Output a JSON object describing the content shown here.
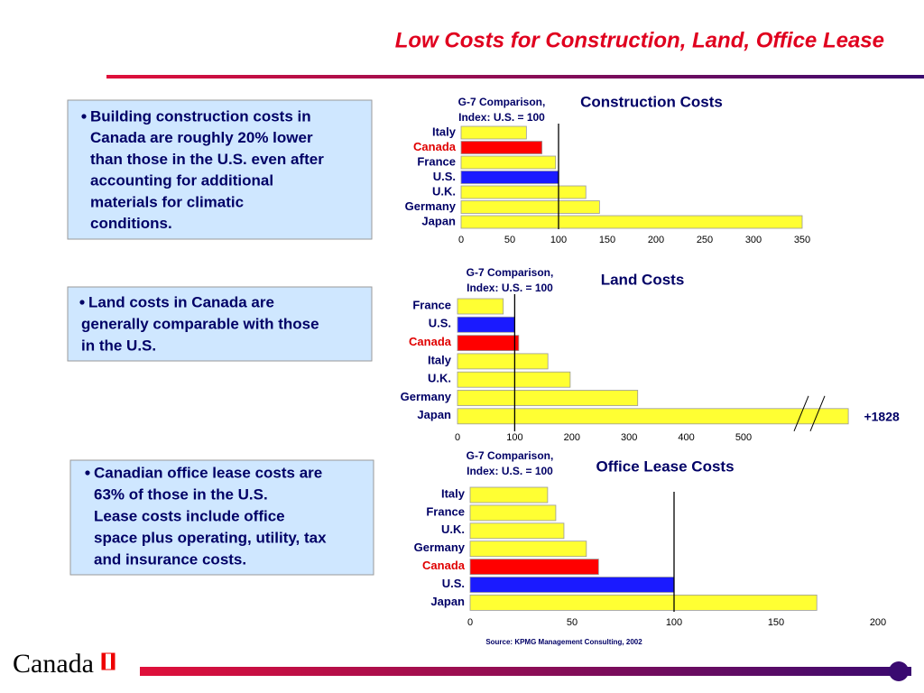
{
  "title": "Low Costs for Construction, Land, Office Lease",
  "notes": [
    {
      "lines": [
        "Building construction costs in",
        "Canada are roughly 20% lower",
        "than those in the U.S. even after",
        "accounting for additional",
        "materials for climatic",
        "conditions."
      ]
    },
    {
      "lines": [
        "Land costs in Canada are",
        "generally comparable with those",
        "in the U.S."
      ]
    },
    {
      "lines": [
        "Canadian office lease costs are",
        "63% of those in the U.S.",
        "Lease costs include office",
        "space plus operating, utility, tax",
        "and insurance costs."
      ]
    }
  ],
  "source": "Source:  KPMG Management Consulting, 2002",
  "logo": "Canada",
  "chart_data": [
    {
      "type": "barh",
      "title": "Construction Costs",
      "subtitle": [
        "G-7 Comparison,",
        "Index: U.S. = 100"
      ],
      "categories": [
        "Italy",
        "Canada",
        "France",
        "U.S.",
        "U.K.",
        "Germany",
        "Japan"
      ],
      "values": [
        67,
        83,
        97,
        100,
        128,
        142,
        350
      ],
      "colors": [
        "#ffff33",
        "#ff0000",
        "#ffff33",
        "#1a1aff",
        "#ffff33",
        "#ffff33",
        "#ffff33"
      ],
      "label_colors": [
        "#000066",
        "#e00000",
        "#000066",
        "#000066",
        "#000066",
        "#000066",
        "#000066"
      ],
      "reference_line": 100,
      "xlim": [
        0,
        350
      ],
      "xticks": [
        0,
        50,
        100,
        150,
        200,
        250,
        300,
        350
      ]
    },
    {
      "type": "barh",
      "title": "Land Costs",
      "subtitle": [
        "G-7 Comparison,",
        "Index: U.S. = 100"
      ],
      "categories": [
        "France",
        "U.S.",
        "Canada",
        "Italy",
        "U.K.",
        "Germany",
        "Japan"
      ],
      "values": [
        80,
        100,
        107,
        158,
        197,
        315,
        1828
      ],
      "value_labels": [
        null,
        null,
        null,
        null,
        null,
        null,
        "+1828"
      ],
      "colors": [
        "#ffff33",
        "#1a1aff",
        "#ff0000",
        "#ffff33",
        "#ffff33",
        "#ffff33",
        "#ffff33"
      ],
      "label_colors": [
        "#000066",
        "#000066",
        "#e00000",
        "#000066",
        "#000066",
        "#000066",
        "#000066"
      ],
      "reference_line": 100,
      "xlim": [
        0,
        680
      ],
      "xticks": [
        0,
        100,
        200,
        300,
        400,
        500
      ]
    },
    {
      "type": "barh",
      "title": "Office Lease Costs",
      "subtitle": [
        "G-7 Comparison,",
        "Index: U.S. = 100"
      ],
      "categories": [
        "Italy",
        "France",
        "U.K.",
        "Germany",
        "Canada",
        "U.S.",
        "Japan"
      ],
      "values": [
        38,
        42,
        46,
        57,
        63,
        100,
        170
      ],
      "colors": [
        "#ffff33",
        "#ffff33",
        "#ffff33",
        "#ffff33",
        "#ff0000",
        "#1a1aff",
        "#ffff33"
      ],
      "label_colors": [
        "#000066",
        "#000066",
        "#000066",
        "#000066",
        "#e00000",
        "#000066",
        "#000066"
      ],
      "reference_line": 100,
      "xlim": [
        0,
        200
      ],
      "xticks": [
        0,
        50,
        100,
        150,
        200
      ]
    }
  ]
}
